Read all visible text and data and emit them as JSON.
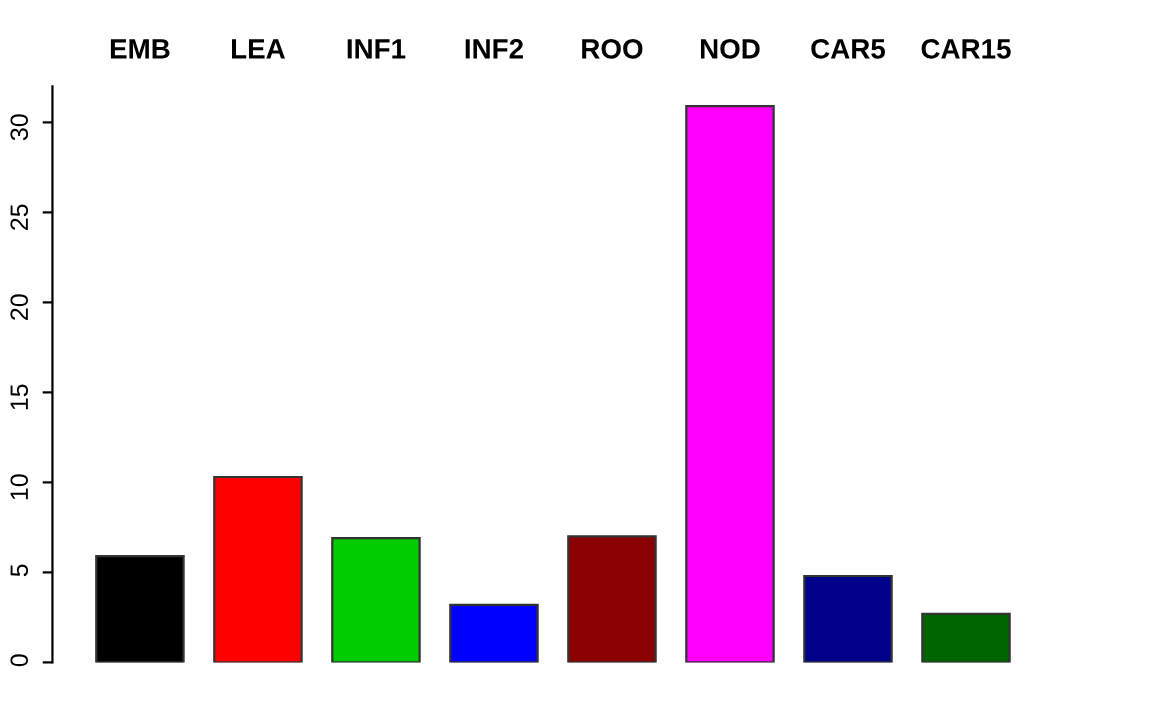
{
  "chart_data": {
    "type": "bar",
    "categories": [
      "EMB",
      "LEA",
      "INF1",
      "INF2",
      "ROO",
      "NOD",
      "CAR5",
      "CAR15"
    ],
    "values": [
      5.9,
      10.3,
      6.9,
      3.2,
      7.0,
      30.9,
      4.8,
      2.7
    ],
    "colors": [
      "#000000",
      "#ff0000",
      "#00cd00",
      "#0000ff",
      "#8b0000",
      "#ff00ff",
      "#00008b",
      "#006400"
    ],
    "ylim": [
      0,
      32
    ],
    "yticks": [
      0,
      5,
      10,
      15,
      20,
      25,
      30
    ],
    "grid": false,
    "legend": false
  }
}
